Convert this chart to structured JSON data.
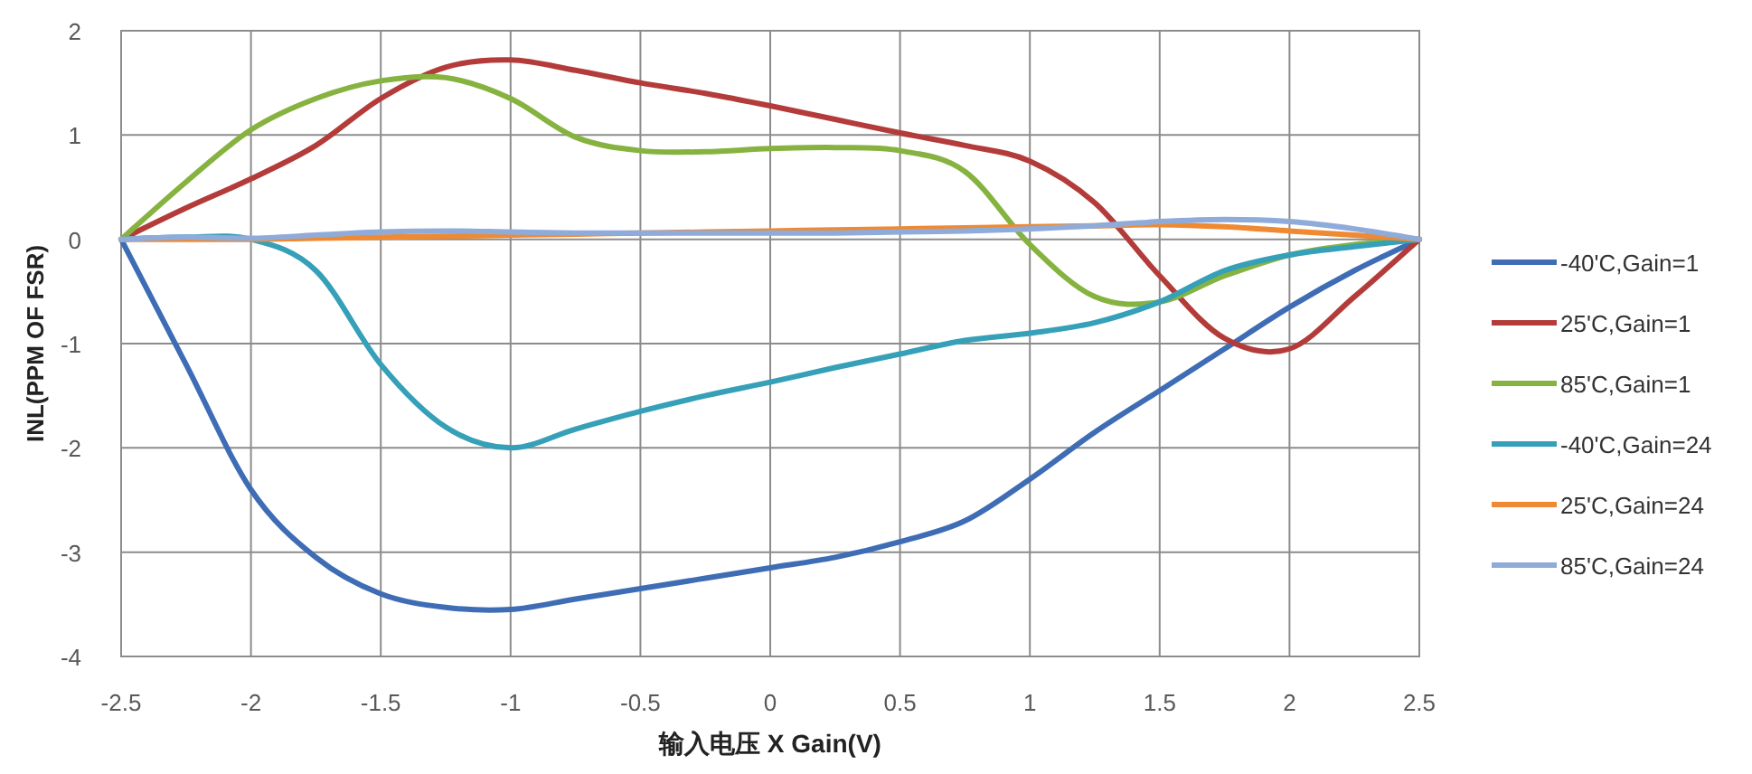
{
  "chart_data": {
    "type": "line",
    "xlabel": "输入电压 X Gain(V)",
    "ylabel": "INL(PPM OF FSR)",
    "x": [
      -2.5,
      -2.25,
      -2,
      -1.75,
      -1.5,
      -1.25,
      -1,
      -0.75,
      -0.5,
      -0.25,
      0,
      0.25,
      0.5,
      0.75,
      1,
      1.25,
      1.5,
      1.75,
      2,
      2.25,
      2.5
    ],
    "series": [
      {
        "name": "-40'C,Gain=1",
        "color": "#3e6db5",
        "values": [
          0,
          -1.2,
          -2.4,
          -3.05,
          -3.4,
          -3.53,
          -3.55,
          -3.45,
          -3.35,
          -3.25,
          -3.15,
          -3.05,
          -2.9,
          -2.7,
          -2.3,
          -1.85,
          -1.45,
          -1.05,
          -0.65,
          -0.3,
          0
        ]
      },
      {
        "name": "25'C,Gain=1",
        "color": "#b33c3a",
        "values": [
          0,
          0.3,
          0.58,
          0.9,
          1.35,
          1.65,
          1.72,
          1.62,
          1.5,
          1.4,
          1.28,
          1.15,
          1.02,
          0.9,
          0.75,
          0.35,
          -0.35,
          -0.95,
          -1.05,
          -0.55,
          0
        ]
      },
      {
        "name": "85'C,Gain=1",
        "color": "#86b340",
        "values": [
          0,
          0.55,
          1.05,
          1.35,
          1.52,
          1.55,
          1.35,
          0.98,
          0.85,
          0.84,
          0.87,
          0.88,
          0.85,
          0.65,
          -0.05,
          -0.55,
          -0.6,
          -0.35,
          -0.15,
          -0.05,
          0
        ]
      },
      {
        "name": "-40'C,Gain=24",
        "color": "#35a0b8",
        "values": [
          0,
          0.02,
          0,
          -0.3,
          -1.2,
          -1.8,
          -2.0,
          -1.82,
          -1.65,
          -1.5,
          -1.37,
          -1.23,
          -1.1,
          -0.97,
          -0.9,
          -0.8,
          -0.6,
          -0.3,
          -0.15,
          -0.07,
          0
        ]
      },
      {
        "name": "25'C,Gain=24",
        "color": "#ef8a33",
        "values": [
          0,
          0,
          0,
          0.01,
          0.02,
          0.03,
          0.04,
          0.05,
          0.06,
          0.07,
          0.08,
          0.09,
          0.1,
          0.11,
          0.12,
          0.13,
          0.14,
          0.12,
          0.08,
          0.04,
          0
        ]
      },
      {
        "name": "85'C,Gain=24",
        "color": "#8fabd9",
        "values": [
          0,
          0.02,
          0.01,
          0.04,
          0.07,
          0.08,
          0.07,
          0.06,
          0.06,
          0.06,
          0.06,
          0.06,
          0.07,
          0.08,
          0.1,
          0.13,
          0.17,
          0.19,
          0.17,
          0.1,
          0
        ]
      }
    ],
    "xlim": [
      -2.5,
      2.5
    ],
    "xticks": [
      -2.5,
      -2,
      -1.5,
      -1,
      -0.5,
      0,
      0.5,
      1,
      1.5,
      2,
      2.5
    ],
    "ylim": [
      -4,
      2
    ],
    "yticks": [
      -4,
      -3,
      -2,
      -1,
      0,
      1,
      2
    ],
    "grid": true,
    "legend": "right",
    "marker": "none",
    "line_style": "solid"
  }
}
